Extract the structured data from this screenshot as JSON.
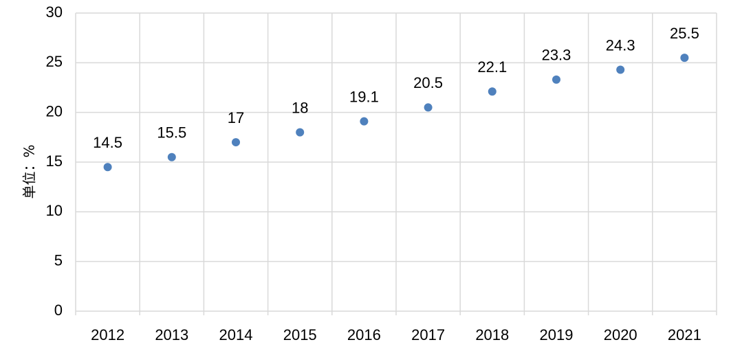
{
  "chart_data": {
    "type": "scatter",
    "title": "",
    "xlabel": "",
    "ylabel": "单位：%",
    "categories": [
      "2012",
      "2013",
      "2014",
      "2015",
      "2016",
      "2017",
      "2018",
      "2019",
      "2020",
      "2021"
    ],
    "values": [
      14.5,
      15.5,
      17,
      18,
      19.1,
      20.5,
      22.1,
      23.3,
      24.3,
      25.5
    ],
    "data_labels": [
      "14.5",
      "15.5",
      "17",
      "18",
      "19.1",
      "20.5",
      "22.1",
      "23.3",
      "24.3",
      "25.5"
    ],
    "ylim": [
      0,
      30
    ],
    "yticks": [
      "0",
      "5",
      "10",
      "15",
      "20",
      "25",
      "30"
    ],
    "grid": true,
    "legend": "none",
    "marker_color": "#4f81bd",
    "grid_color": "#d9d9d9"
  }
}
